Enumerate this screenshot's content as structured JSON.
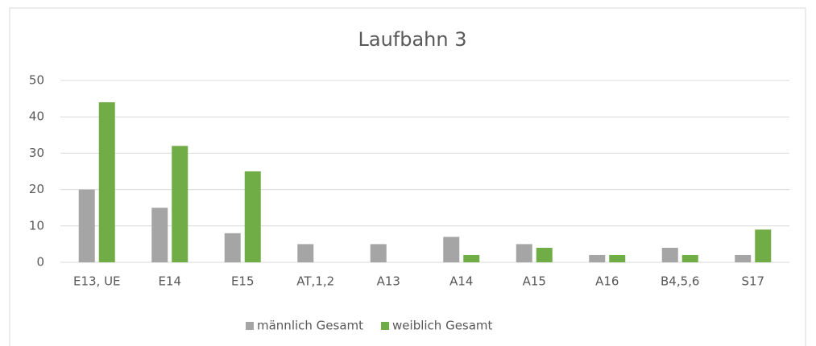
{
  "chart_data": {
    "type": "bar",
    "title": "Laufbahn 3",
    "categories": [
      "E13, UE",
      "E14",
      "E15",
      "AT,1,2",
      "A13",
      "A14",
      "A15",
      "A16",
      "B4,5,6",
      "S17"
    ],
    "series": [
      {
        "name": "männlich Gesamt",
        "color": "#a5a5a5",
        "values": [
          20,
          15,
          8,
          5,
          5,
          7,
          5,
          2,
          4,
          2
        ]
      },
      {
        "name": "weiblich Gesamt",
        "color": "#70ad47",
        "values": [
          44,
          32,
          25,
          0,
          0,
          2,
          4,
          2,
          2,
          9
        ]
      }
    ],
    "ylim": [
      0,
      50
    ],
    "yticks": [
      0,
      10,
      20,
      30,
      40,
      50
    ],
    "grid": true,
    "legend": "bottom"
  }
}
